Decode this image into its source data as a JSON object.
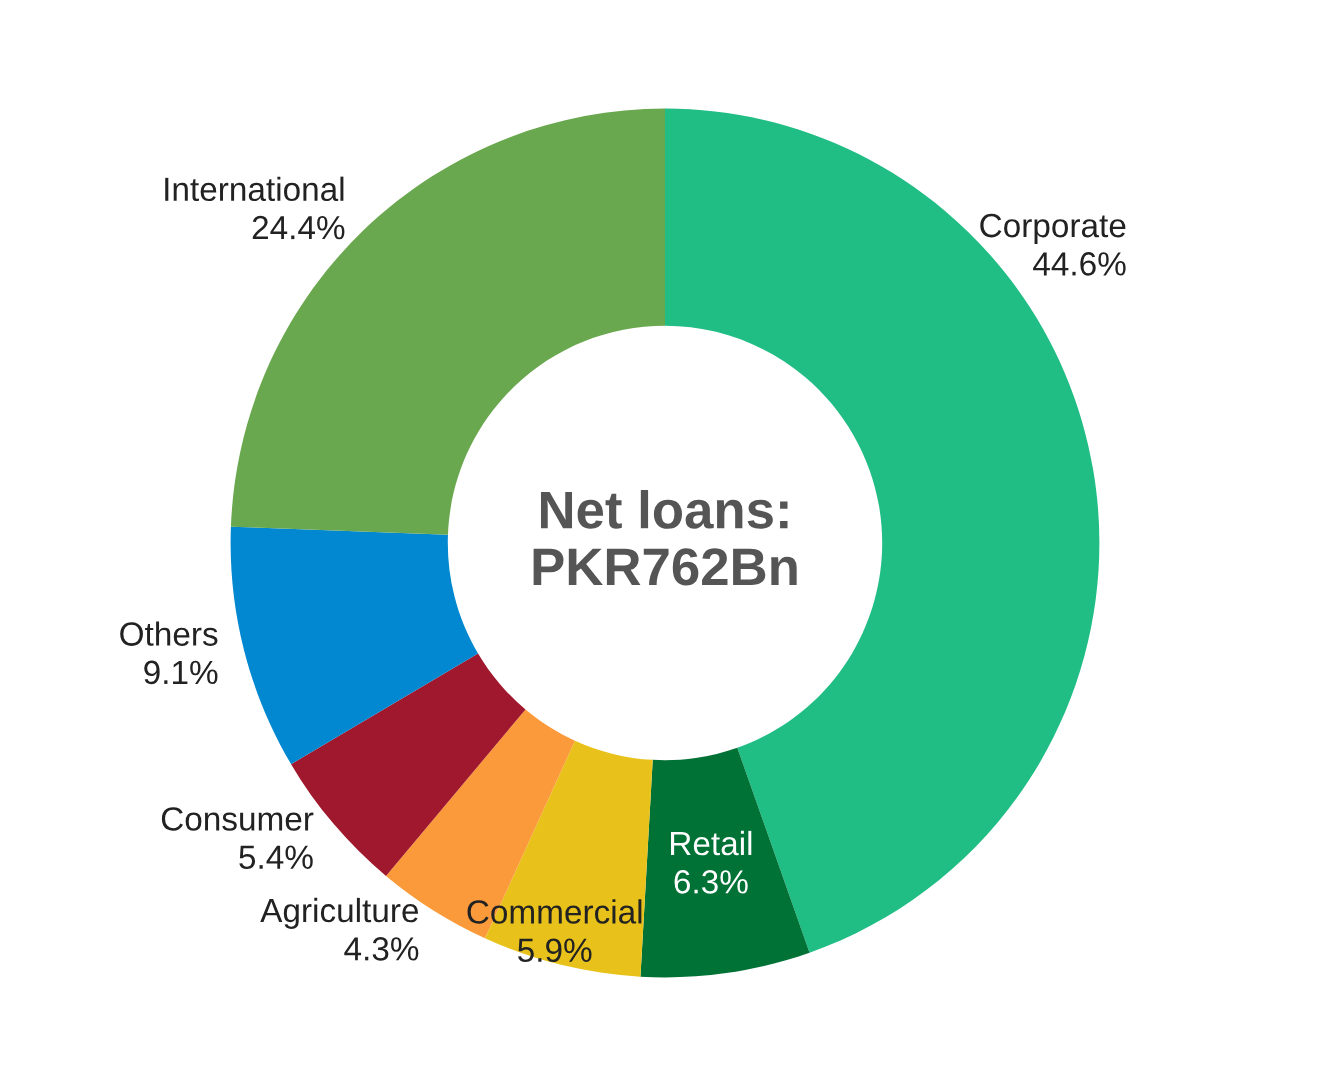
{
  "chart_data": {
    "type": "donut",
    "categories": [
      "Corporate",
      "Retail",
      "Commercial",
      "Agriculture",
      "Consumer",
      "Others",
      "International"
    ],
    "values": [
      44.6,
      6.3,
      5.9,
      4.3,
      5.4,
      9.1,
      24.4
    ],
    "colors": [
      "#20bd85",
      "#007236",
      "#e8c21a",
      "#fb9a3a",
      "#a0182e",
      "#0288d1",
      "#6aa84f"
    ],
    "value_labels": [
      "44.6%",
      "6.3%",
      "5.9%",
      "4.3%",
      "5.4%",
      "9.1%",
      "24.4%"
    ],
    "annotations": [
      "Net loans:\nPKR762Bn"
    ]
  }
}
